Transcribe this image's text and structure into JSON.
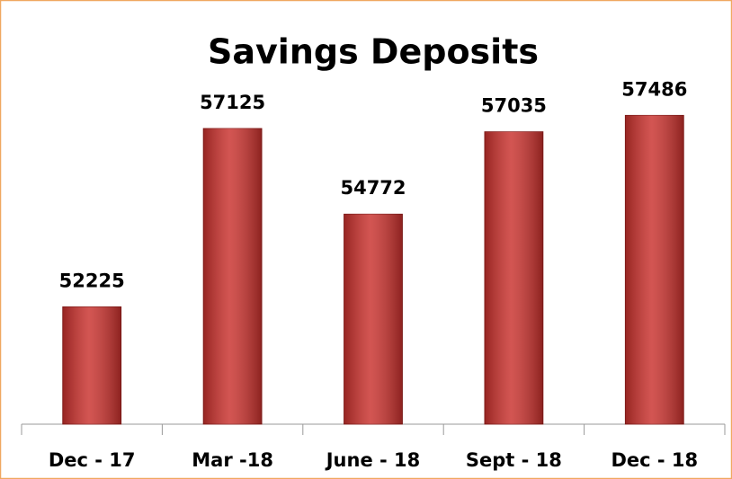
{
  "chart_data": {
    "type": "bar",
    "title": "Savings Deposits",
    "categories": [
      "Dec - 17",
      "Mar -18",
      "June - 18",
      "Sept - 18",
      "Dec - 18"
    ],
    "values": [
      52225,
      57125,
      54772,
      57035,
      57486
    ],
    "color": "#c9302c",
    "ylim": [
      49000,
      58000
    ]
  }
}
